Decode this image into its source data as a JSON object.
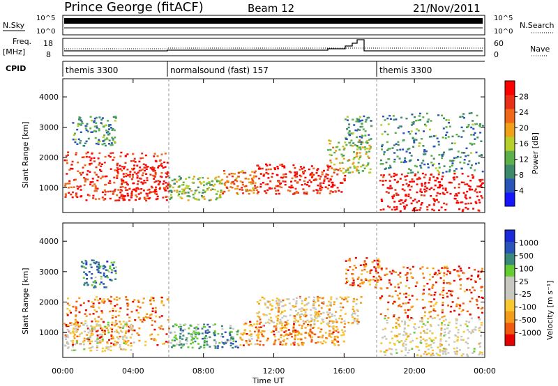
{
  "header": {
    "station": "Prince George (fitACF)",
    "beam": "Beam 12",
    "date": "21/Nov/2011"
  },
  "side_labels": {
    "nsky": "N.Sky",
    "nsearch": "N.Search",
    "freq": "Freq.",
    "freq_unit": "[MHz]",
    "nave": "Nave",
    "cpid": "CPID",
    "nsky_ticks": [
      "10^5",
      "10^0"
    ],
    "freq_ticks": [
      "18",
      "8"
    ],
    "nave_ticks": [
      "60",
      "0"
    ],
    "nsearch_ticks": [
      "10^5",
      "10^0"
    ]
  },
  "cpid_segments": [
    {
      "label": "themis 3300",
      "start": 0,
      "end": 6
    },
    {
      "label": "normalsound (fast) 157",
      "start": 6,
      "end": 18
    },
    {
      "label": "themis 3300",
      "start": 18,
      "end": 24
    }
  ],
  "chart_data": [
    {
      "type": "heatmap",
      "xlabel": "Time UT",
      "ylabel": "Slant Range [km]",
      "x_tick_labels": [
        "00:00",
        "04:00",
        "08:00",
        "12:00",
        "16:00",
        "20:00",
        "00:00"
      ],
      "xlim_hours": [
        0,
        24
      ],
      "y_tick_labels": [
        "1000",
        "2000",
        "3000",
        "4000"
      ],
      "ylim": [
        180,
        4600
      ],
      "colorbar": {
        "label": "Power [dB]",
        "ticks": [
          "28",
          "24",
          "20",
          "16",
          "12",
          "8",
          "4"
        ],
        "colors": [
          "#1515ff",
          "#2a55b8",
          "#3c8a6a",
          "#5bb04a",
          "#b7cf2a",
          "#f0a11a",
          "#f0681a",
          "#e83018",
          "#ff0000"
        ]
      },
      "regions": [
        {
          "t": [
            0,
            6
          ],
          "r": [
            600,
            2200
          ],
          "level": 0.85
        },
        {
          "t": [
            0.5,
            3
          ],
          "r": [
            2400,
            3400
          ],
          "level": 0.3
        },
        {
          "t": [
            3,
            6
          ],
          "r": [
            600,
            1800
          ],
          "level": 0.9
        },
        {
          "t": [
            6,
            9
          ],
          "r": [
            600,
            1400
          ],
          "level": 0.45
        },
        {
          "t": [
            9,
            11
          ],
          "r": [
            800,
            1600
          ],
          "level": 0.7
        },
        {
          "t": [
            11,
            16
          ],
          "r": [
            800,
            1800
          ],
          "level": 0.9
        },
        {
          "t": [
            15,
            17.5
          ],
          "r": [
            1500,
            2600
          ],
          "level": 0.5
        },
        {
          "t": [
            16,
            17.5
          ],
          "r": [
            2400,
            3400
          ],
          "level": 0.3
        },
        {
          "t": [
            18,
            24
          ],
          "r": [
            250,
            1500
          ],
          "level": 0.95
        },
        {
          "t": [
            18,
            24
          ],
          "r": [
            1500,
            3500
          ],
          "level": 0.3
        }
      ]
    },
    {
      "type": "heatmap",
      "xlabel": "Time UT",
      "ylabel": "Slant Range [km]",
      "x_tick_labels": [
        "00:00",
        "04:00",
        "08:00",
        "12:00",
        "16:00",
        "20:00",
        "00:00"
      ],
      "xlim_hours": [
        0,
        24
      ],
      "y_tick_labels": [
        "1000",
        "2000",
        "3000",
        "4000"
      ],
      "ylim": [
        180,
        4600
      ],
      "colorbar": {
        "label": "Velocity [m s⁻¹]",
        "ticks": [
          "1000",
          "500",
          "100",
          "25",
          "-25",
          "-100",
          "-500",
          "-1000"
        ],
        "colors": [
          "#e80000",
          "#f05a10",
          "#f39c1a",
          "#f7c830",
          "#c8c8c0",
          "#c8c8c0",
          "#66cc33",
          "#3a8a7a",
          "#2a55b8",
          "#1a2ad8"
        ]
      },
      "regions": [
        {
          "t": [
            0,
            6
          ],
          "r": [
            600,
            2200
          ],
          "level": 0.2
        },
        {
          "t": [
            0,
            4
          ],
          "r": [
            400,
            1400
          ],
          "level": 0.45
        },
        {
          "t": [
            1,
            3
          ],
          "r": [
            2500,
            3400
          ],
          "level": 0.75
        },
        {
          "t": [
            6,
            10
          ],
          "r": [
            500,
            1300
          ],
          "level": 0.7
        },
        {
          "t": [
            10,
            16
          ],
          "r": [
            600,
            1400
          ],
          "level": 0.25
        },
        {
          "t": [
            11,
            17
          ],
          "r": [
            1300,
            2200
          ],
          "level": 0.35
        },
        {
          "t": [
            16,
            18
          ],
          "r": [
            2500,
            3500
          ],
          "level": 0.2
        },
        {
          "t": [
            18,
            24
          ],
          "r": [
            250,
            1500
          ],
          "level": 0.45
        },
        {
          "t": [
            18,
            24
          ],
          "r": [
            1500,
            3200
          ],
          "level": 0.15
        }
      ]
    }
  ]
}
